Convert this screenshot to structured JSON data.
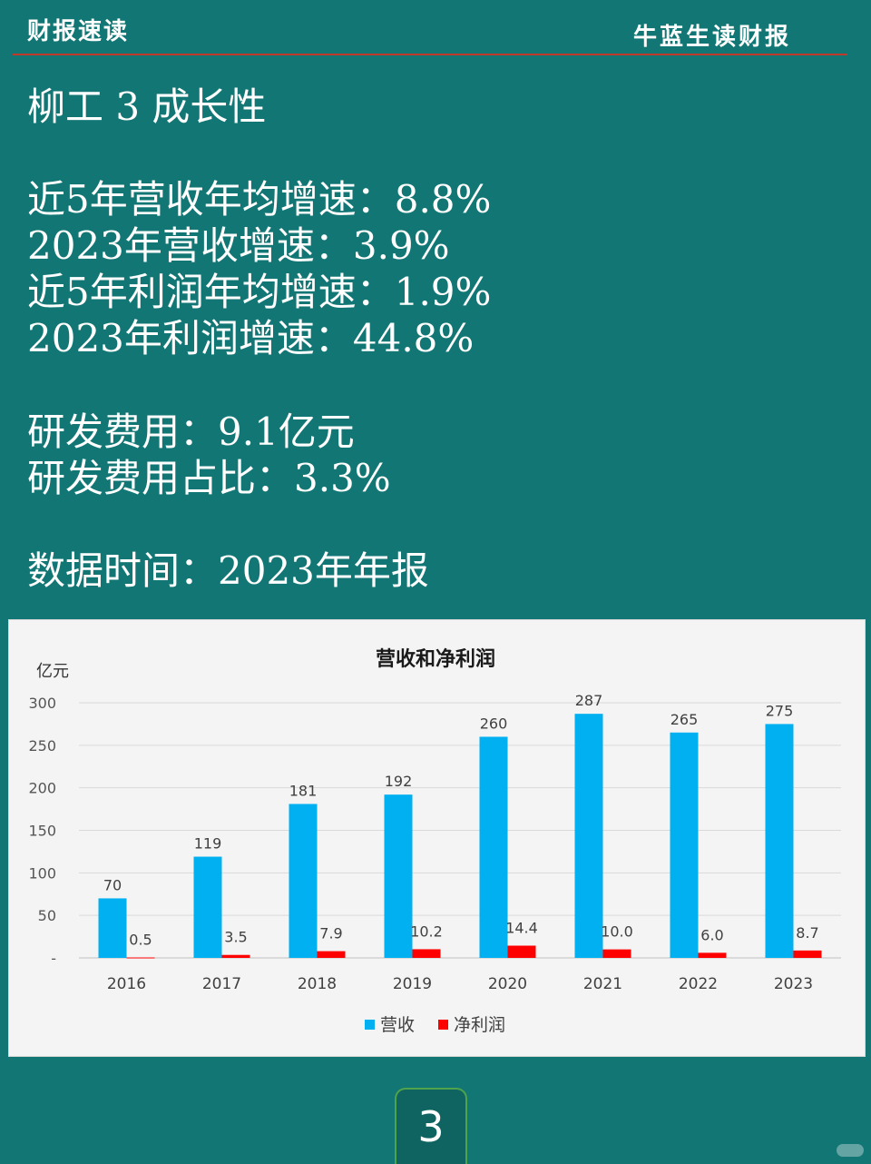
{
  "header": {
    "left": "财报速读",
    "right": "牛蓝生读财报"
  },
  "lines": [
    "柳工 3 成长性",
    "近5年营收年均增速：8.8%",
    "2023年营收增速：3.9%",
    "近5年利润年均增速：1.9%",
    "2023年利润增速：44.8%",
    "研发费用：9.1亿元",
    "研发费用占比：3.3%",
    "数据时间：2023年年报"
  ],
  "page_number": "3",
  "chart_data": {
    "type": "bar",
    "title": "营收和净利润",
    "ylabel": "亿元",
    "ylim": [
      0,
      300
    ],
    "yticks": [
      "-",
      "50",
      "100",
      "150",
      "200",
      "250",
      "300"
    ],
    "categories": [
      "2016",
      "2017",
      "2018",
      "2019",
      "2020",
      "2021",
      "2022",
      "2023"
    ],
    "series": [
      {
        "name": "营收",
        "color": "#00b0f0",
        "values": [
          70,
          119,
          181,
          192,
          260,
          287,
          265,
          275
        ],
        "labels": [
          "70",
          "119",
          "181",
          "192",
          "260",
          "287",
          "265",
          "275"
        ]
      },
      {
        "name": "净利润",
        "color": "#ff0000",
        "values": [
          0.5,
          3.5,
          7.9,
          10.2,
          14.4,
          10.0,
          6.0,
          8.7
        ],
        "labels": [
          "0.5",
          "3.5",
          "7.9",
          "10.2",
          "14.4",
          "10.0",
          "6.0",
          "8.7"
        ]
      }
    ],
    "grid": true,
    "legend": "bottom"
  }
}
